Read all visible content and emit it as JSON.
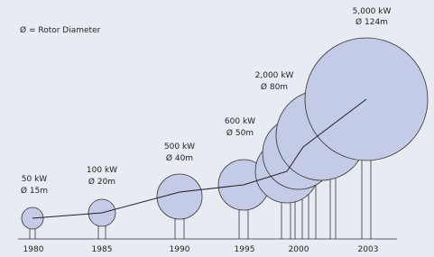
{
  "legend": "Ø = Rotor Diameter",
  "turbines": [
    {
      "power": "50 kW",
      "diameter": "Ø 15m"
    },
    {
      "power": "100 kW",
      "diameter": "Ø 20m"
    },
    {
      "power": "500 kW",
      "diameter": "Ø 40m"
    },
    {
      "power": "600 kW",
      "diameter": "Ø 50m"
    },
    {
      "power": "2,000 kW",
      "diameter": "Ø 80m"
    },
    {
      "power": "5,000 kW",
      "diameter": "Ø 124m"
    }
  ],
  "years": [
    "1980",
    "1985",
    "1990",
    "1995",
    "2000",
    "2003"
  ]
}
